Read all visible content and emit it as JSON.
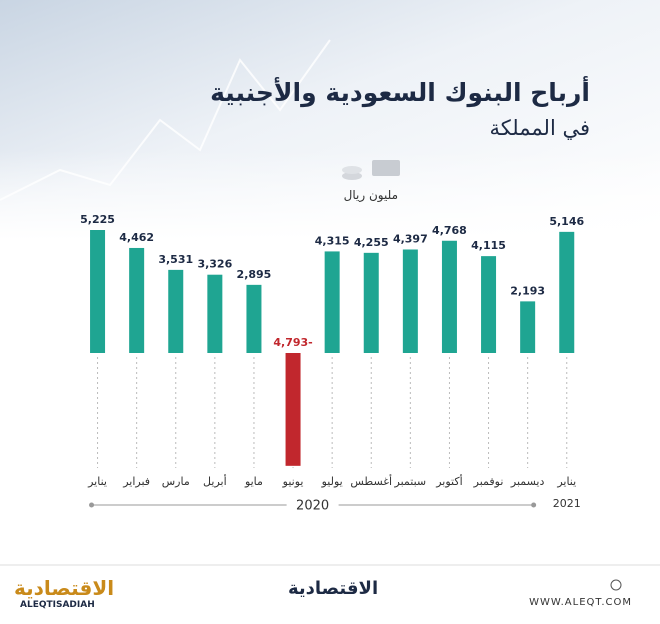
{
  "chart_data": {
    "type": "bar",
    "title": "أرباح البنوك السعودية والأجنبية",
    "subtitle": "في المملكة",
    "unit_label": "مليون ريال",
    "categories": [
      "يناير",
      "فبراير",
      "مارس",
      "أبريل",
      "مايو",
      "يونيو",
      "يوليو",
      "أغسطس",
      "سبتمبر",
      "أكتوبر",
      "نوفمبر",
      "ديسمبر",
      "يناير"
    ],
    "values": [
      5225,
      4462,
      3531,
      3326,
      2895,
      -4793,
      4315,
      4255,
      4397,
      4768,
      4115,
      2193,
      5146
    ],
    "value_labels": [
      "5,225",
      "4,462",
      "3,531",
      "3,326",
      "2,895",
      "4,793-",
      "4,315",
      "4,255",
      "4,397",
      "4,768",
      "4,115",
      "2,193",
      "5,146"
    ],
    "color": "#1fa592",
    "negative_color": "#c1272d",
    "year_labels": [
      "2020",
      "2021"
    ]
  },
  "footer": {
    "logo_left": "الاقتصادية",
    "logo_left_latin": "ALEQTISADIAH",
    "logo_center": "الاقتصادية",
    "website": "WWW.ALEQT.COM"
  }
}
